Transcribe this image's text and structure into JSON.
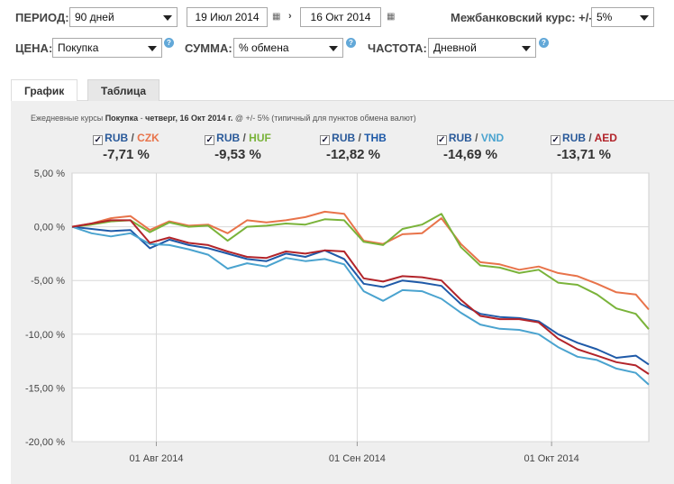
{
  "controls": {
    "period_label": "ПЕРИОД:",
    "period_value": "90 дней",
    "date_from": "19 Июл 2014",
    "date_to": "16 Окт 2014",
    "interbank_label": "Межбанковский курс: +/-",
    "interbank_value": "5%",
    "price_label": "ЦЕНА:",
    "price_value": "Покупка",
    "sum_label": "СУММА:",
    "sum_value": "% обмена",
    "freq_label": "ЧАСТОТА:",
    "freq_value": "Дневной",
    "help_glyph": "?"
  },
  "tabs": [
    {
      "label": "График",
      "active": true
    },
    {
      "label": "Таблица",
      "active": false
    }
  ],
  "subtitle": {
    "prefix": "Ежедневные курсы ",
    "price": "Покупка",
    "sep": " - ",
    "date": "четверг, 16 Окт 2014 г.",
    "suffix": " @ +/- 5% (типичный для пунктов обмена валют)"
  },
  "legend": [
    {
      "base": "RUB",
      "quote": "CZK",
      "change": "-7,71 %",
      "color": "#e8734a"
    },
    {
      "base": "RUB",
      "quote": "HUF",
      "change": "-9,53 %",
      "color": "#7ab33a"
    },
    {
      "base": "RUB",
      "quote": "THB",
      "change": "-12,82 %",
      "color": "#1f5aa8"
    },
    {
      "base": "RUB",
      "quote": "VND",
      "change": "-14,69 %",
      "color": "#4aa3cf"
    },
    {
      "base": "RUB",
      "quote": "AED",
      "change": "-13,71 %",
      "color": "#b2242a"
    }
  ],
  "chart_data": {
    "type": "line",
    "ylim": [
      -20,
      5
    ],
    "yticks": [
      5,
      0,
      -5,
      -10,
      -15,
      -20
    ],
    "ytick_labels": [
      "5,00 %",
      "0,00 %",
      "-5,00 %",
      "-10,00 %",
      "-15,00 %",
      "-20,00 %"
    ],
    "x_range": [
      "2014-07-19",
      "2014-10-16"
    ],
    "xticks": [
      "2014-08-01",
      "2014-09-01",
      "2014-10-01"
    ],
    "xtick_labels": [
      "01 Авг 2014",
      "01 Сен 2014",
      "01 Окт 2014"
    ],
    "grid": true,
    "series": [
      {
        "name": "RUB / CZK",
        "color": "#e8734a",
        "x": [
          "2014-07-19",
          "2014-07-22",
          "2014-07-25",
          "2014-07-28",
          "2014-07-31",
          "2014-08-03",
          "2014-08-06",
          "2014-08-09",
          "2014-08-12",
          "2014-08-15",
          "2014-08-18",
          "2014-08-21",
          "2014-08-24",
          "2014-08-27",
          "2014-08-30",
          "2014-09-02",
          "2014-09-05",
          "2014-09-08",
          "2014-09-11",
          "2014-09-14",
          "2014-09-17",
          "2014-09-20",
          "2014-09-23",
          "2014-09-26",
          "2014-09-29",
          "2014-10-02",
          "2014-10-05",
          "2014-10-08",
          "2014-10-11",
          "2014-10-14",
          "2014-10-16"
        ],
        "y": [
          0,
          0.3,
          0.8,
          1.0,
          -0.3,
          0.5,
          0.1,
          0.2,
          -0.6,
          0.6,
          0.4,
          0.6,
          0.9,
          1.4,
          1.2,
          -1.3,
          -1.6,
          -0.7,
          -0.6,
          0.8,
          -1.6,
          -3.3,
          -3.5,
          -4.0,
          -3.7,
          -4.3,
          -4.6,
          -5.3,
          -6.1,
          -6.3,
          -7.71
        ]
      },
      {
        "name": "RUB / HUF",
        "color": "#7ab33a",
        "x": [
          "2014-07-19",
          "2014-07-22",
          "2014-07-25",
          "2014-07-28",
          "2014-07-31",
          "2014-08-03",
          "2014-08-06",
          "2014-08-09",
          "2014-08-12",
          "2014-08-15",
          "2014-08-18",
          "2014-08-21",
          "2014-08-24",
          "2014-08-27",
          "2014-08-30",
          "2014-09-02",
          "2014-09-05",
          "2014-09-08",
          "2014-09-11",
          "2014-09-14",
          "2014-09-17",
          "2014-09-20",
          "2014-09-23",
          "2014-09-26",
          "2014-09-29",
          "2014-10-02",
          "2014-10-05",
          "2014-10-08",
          "2014-10-11",
          "2014-10-14",
          "2014-10-16"
        ],
        "y": [
          0,
          0.2,
          0.5,
          0.6,
          -0.5,
          0.4,
          0.0,
          0.1,
          -1.3,
          0.0,
          0.1,
          0.3,
          0.2,
          0.7,
          0.6,
          -1.4,
          -1.7,
          -0.2,
          0.2,
          1.2,
          -1.9,
          -3.6,
          -3.8,
          -4.3,
          -4.0,
          -5.2,
          -5.4,
          -6.3,
          -7.6,
          -8.1,
          -9.53
        ]
      },
      {
        "name": "RUB / THB",
        "color": "#1f5aa8",
        "x": [
          "2014-07-19",
          "2014-07-22",
          "2014-07-25",
          "2014-07-28",
          "2014-07-31",
          "2014-08-03",
          "2014-08-06",
          "2014-08-09",
          "2014-08-12",
          "2014-08-15",
          "2014-08-18",
          "2014-08-21",
          "2014-08-24",
          "2014-08-27",
          "2014-08-30",
          "2014-09-02",
          "2014-09-05",
          "2014-09-08",
          "2014-09-11",
          "2014-09-14",
          "2014-09-17",
          "2014-09-20",
          "2014-09-23",
          "2014-09-26",
          "2014-09-29",
          "2014-10-02",
          "2014-10-05",
          "2014-10-08",
          "2014-10-11",
          "2014-10-14",
          "2014-10-16"
        ],
        "y": [
          0,
          -0.2,
          -0.4,
          -0.3,
          -2.0,
          -1.2,
          -1.7,
          -2.0,
          -2.5,
          -3.0,
          -3.2,
          -2.5,
          -2.8,
          -2.2,
          -3.0,
          -5.3,
          -5.6,
          -5.0,
          -5.2,
          -5.5,
          -7.2,
          -8.1,
          -8.4,
          -8.5,
          -8.8,
          -10.0,
          -10.8,
          -11.4,
          -12.2,
          -12.0,
          -12.82
        ]
      },
      {
        "name": "RUB / VND",
        "color": "#4aa3cf",
        "x": [
          "2014-07-19",
          "2014-07-22",
          "2014-07-25",
          "2014-07-28",
          "2014-07-31",
          "2014-08-03",
          "2014-08-06",
          "2014-08-09",
          "2014-08-12",
          "2014-08-15",
          "2014-08-18",
          "2014-08-21",
          "2014-08-24",
          "2014-08-27",
          "2014-08-30",
          "2014-09-02",
          "2014-09-05",
          "2014-09-08",
          "2014-09-11",
          "2014-09-14",
          "2014-09-17",
          "2014-09-20",
          "2014-09-23",
          "2014-09-26",
          "2014-09-29",
          "2014-10-02",
          "2014-10-05",
          "2014-10-08",
          "2014-10-11",
          "2014-10-14",
          "2014-10-16"
        ],
        "y": [
          0,
          -0.6,
          -0.9,
          -0.6,
          -1.6,
          -1.7,
          -2.1,
          -2.6,
          -3.9,
          -3.4,
          -3.7,
          -2.9,
          -3.2,
          -3.0,
          -3.5,
          -6.0,
          -6.9,
          -5.9,
          -6.0,
          -6.7,
          -8.0,
          -9.1,
          -9.5,
          -9.6,
          -10.0,
          -11.2,
          -12.1,
          -12.4,
          -13.2,
          -13.6,
          -14.69
        ]
      },
      {
        "name": "RUB / AED",
        "color": "#b2242a",
        "x": [
          "2014-07-19",
          "2014-07-22",
          "2014-07-25",
          "2014-07-28",
          "2014-07-31",
          "2014-08-03",
          "2014-08-06",
          "2014-08-09",
          "2014-08-12",
          "2014-08-15",
          "2014-08-18",
          "2014-08-21",
          "2014-08-24",
          "2014-08-27",
          "2014-08-30",
          "2014-09-02",
          "2014-09-05",
          "2014-09-08",
          "2014-09-11",
          "2014-09-14",
          "2014-09-17",
          "2014-09-20",
          "2014-09-23",
          "2014-09-26",
          "2014-09-29",
          "2014-10-02",
          "2014-10-05",
          "2014-10-08",
          "2014-10-11",
          "2014-10-14",
          "2014-10-16"
        ],
        "y": [
          0,
          0.3,
          0.6,
          0.6,
          -1.5,
          -1.0,
          -1.5,
          -1.7,
          -2.3,
          -2.8,
          -2.9,
          -2.3,
          -2.5,
          -2.2,
          -2.3,
          -4.8,
          -5.1,
          -4.6,
          -4.7,
          -5.0,
          -6.8,
          -8.3,
          -8.6,
          -8.6,
          -8.9,
          -10.4,
          -11.4,
          -12.0,
          -12.6,
          -12.9,
          -13.71
        ]
      }
    ]
  }
}
